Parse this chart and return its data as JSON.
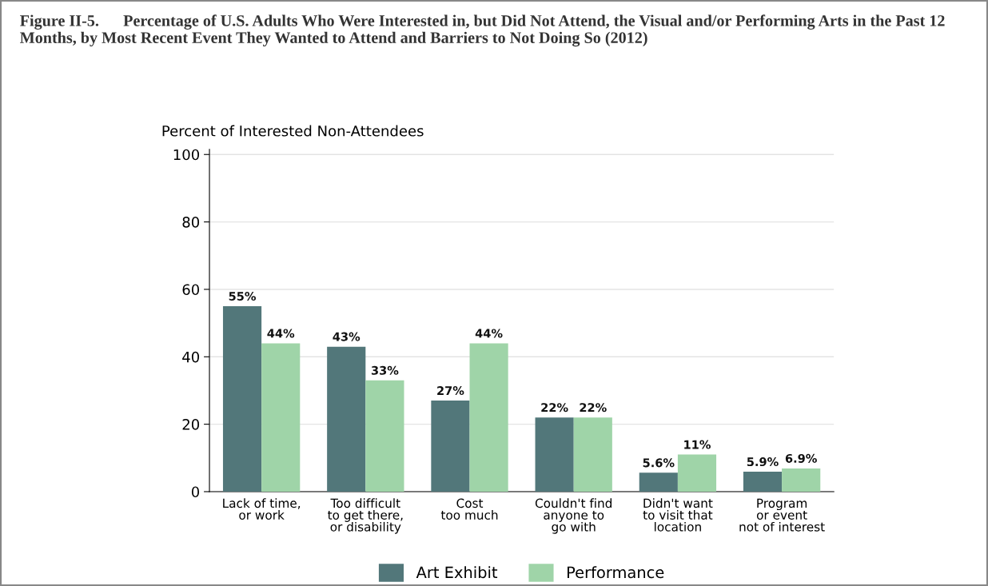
{
  "chart_data": {
    "type": "bar",
    "title": "Figure II-5.      Percentage of U.S. Adults Who Were Interested in, but Did Not Attend, the Visual and/or Performing Arts in the Past 12 Months, by Most Recent Event They Wanted to Attend and Barriers to Not Doing So (2012)",
    "ylabel": "Percent of Interested Non-Attendees",
    "categories": [
      "Lack of time,\nor work",
      "Too difficult\nto get there,\nor disability",
      "Cost\ntoo much",
      "Couldn't find\nanyone to\ngo with",
      "Didn't want\nto visit that\nlocation",
      "Program\nor event\nnot of interest"
    ],
    "series": [
      {
        "name": "Art Exhibit",
        "color": "#52777a",
        "values": [
          55,
          43,
          27,
          22,
          5.6,
          5.9
        ],
        "value_labels": [
          "55%",
          "43%",
          "27%",
          "22%",
          "5.6%",
          "5.9%"
        ]
      },
      {
        "name": "Performance",
        "color": "#9fd4a8",
        "values": [
          44,
          33,
          44,
          22,
          11,
          6.9
        ],
        "value_labels": [
          "44%",
          "33%",
          "44%",
          "22%",
          "11%",
          "6.9%"
        ]
      }
    ],
    "ylim": [
      0,
      101.5
    ],
    "yticks": [
      0,
      20,
      40,
      60,
      80,
      100
    ],
    "grid": "y",
    "legend": "bottom"
  }
}
